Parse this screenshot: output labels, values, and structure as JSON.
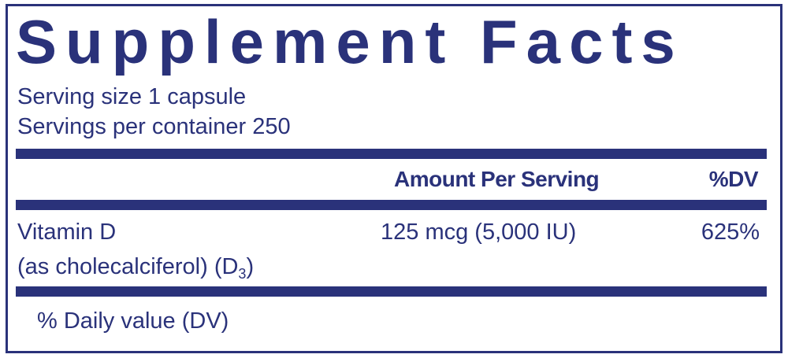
{
  "title": "Supplement Facts",
  "serving_size": "Serving size  1 capsule",
  "servings_per_container": "Servings per container  250",
  "header": {
    "amount": "Amount Per Serving",
    "dv": "%DV"
  },
  "ingredients": [
    {
      "name": "Vitamin D",
      "form_prefix": "(as cholecalciferol) (D",
      "form_sub": "3",
      "form_suffix": ")",
      "amount": "125 mcg (5,000 IU)",
      "dv": "625%"
    }
  ],
  "footnote": "% Daily value (DV)",
  "colors": {
    "ink": "#2a327a",
    "background": "#ffffff"
  }
}
